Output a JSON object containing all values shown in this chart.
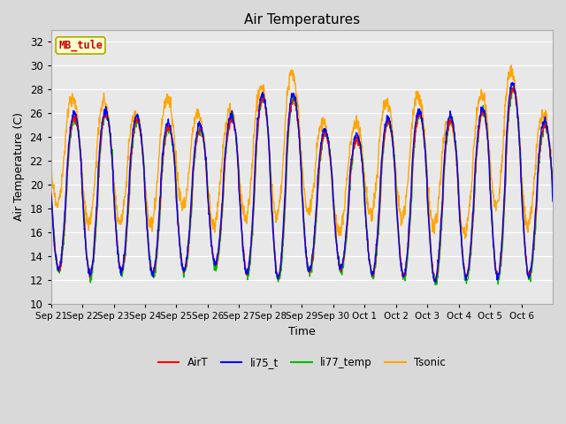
{
  "title": "Air Temperatures",
  "xlabel": "Time",
  "ylabel": "Air Temperature (C)",
  "ylim": [
    10,
    33
  ],
  "yticks": [
    10,
    12,
    14,
    16,
    18,
    20,
    22,
    24,
    26,
    28,
    30,
    32
  ],
  "colors": {
    "AirT": "#ff0000",
    "li75_t": "#0000ff",
    "li77_temp": "#00bb00",
    "Tsonic": "#ffa500"
  },
  "linewidth": 1.0,
  "legend_labels": [
    "AirT",
    "li75_t",
    "li77_temp",
    "Tsonic"
  ],
  "annotation_text": "MB_tule",
  "annotation_box_color": "#ffffcc",
  "annotation_box_edgecolor": "#aaaa00",
  "annotation_text_color": "#cc0000",
  "fig_bg_color": "#d9d9d9",
  "plot_bg_color": "#e8e8e8",
  "xtick_labels": [
    "Sep 21",
    "Sep 22",
    "Sep 23",
    "Sep 24",
    "Sep 25",
    "Sep 26",
    "Sep 27",
    "Sep 28",
    "Sep 29",
    "Sep 30",
    "Oct 1",
    "Oct 2",
    "Oct 3",
    "Oct 4",
    "Oct 5",
    "Oct 6"
  ],
  "n_days": 16
}
